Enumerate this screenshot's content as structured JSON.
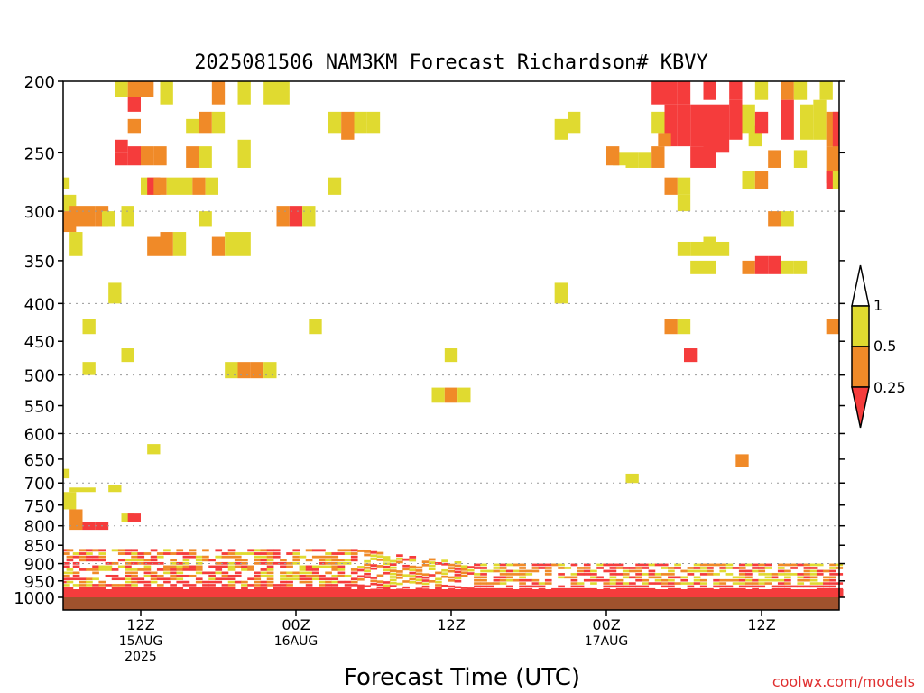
{
  "chart_data": {
    "type": "heatmap",
    "title": "2025081506 NAM3KM Forecast Richardson# KBVY",
    "xlabel": "Forecast Time (UTC)",
    "ylabel": "",
    "watermark": "coolwx.com/models",
    "y_axis": {
      "scale": "log-pressure",
      "unit": "hPa",
      "range": [
        1000,
        200
      ],
      "ticks": [
        200,
        250,
        300,
        350,
        400,
        450,
        500,
        550,
        600,
        650,
        700,
        750,
        800,
        850,
        900,
        950,
        1000
      ],
      "dotted_gridlines": [
        300,
        400,
        500,
        600,
        700,
        800,
        900
      ]
    },
    "x_axis": {
      "unit": "forecast hour",
      "range": [
        0,
        60
      ],
      "ticks": [
        {
          "hour": 6,
          "lines": [
            "12Z",
            "15AUG",
            "2025"
          ]
        },
        {
          "hour": 18,
          "lines": [
            "00Z",
            "16AUG"
          ]
        },
        {
          "hour": 30,
          "lines": [
            "12Z"
          ]
        },
        {
          "hour": 42,
          "lines": [
            "00Z",
            "17AUG"
          ]
        },
        {
          "hour": 54,
          "lines": [
            "12Z"
          ]
        }
      ]
    },
    "colorbar": {
      "labels": [
        "1",
        "0.5",
        "0.25"
      ],
      "bins": [
        {
          "from": 0.5,
          "to": 1,
          "color": "#e0da30"
        },
        {
          "from": 0.25,
          "to": 0.5,
          "color": "#f08a28"
        },
        {
          "from": 0,
          "to": 0.25,
          "color": "#f53c3c"
        }
      ],
      "over_color": "#ffffff",
      "under_color": "#f53c3c"
    },
    "surface_color": "#a0522d",
    "cells": [
      {
        "t": 4.5,
        "p1": 200,
        "p2": 210,
        "c": 1
      },
      {
        "t": 5.5,
        "p1": 200,
        "p2": 210,
        "c": 2
      },
      {
        "t": 6.5,
        "p1": 200,
        "p2": 210,
        "c": 2
      },
      {
        "t": 5.5,
        "p1": 210,
        "p2": 220,
        "c": 3
      },
      {
        "t": 8,
        "p1": 200,
        "p2": 215,
        "c": 1
      },
      {
        "t": 12,
        "p1": 200,
        "p2": 215,
        "c": 2
      },
      {
        "t": 14,
        "p1": 200,
        "p2": 215,
        "c": 1
      },
      {
        "t": 16,
        "p1": 200,
        "p2": 215,
        "c": 1
      },
      {
        "t": 17,
        "p1": 200,
        "p2": 215,
        "c": 1
      },
      {
        "t": 5.5,
        "p1": 225,
        "p2": 235,
        "c": 2
      },
      {
        "t": 10,
        "p1": 225,
        "p2": 235,
        "c": 1
      },
      {
        "t": 11,
        "p1": 220,
        "p2": 235,
        "c": 2
      },
      {
        "t": 12,
        "p1": 220,
        "p2": 235,
        "c": 1
      },
      {
        "t": 21,
        "p1": 220,
        "p2": 235,
        "c": 1
      },
      {
        "t": 22,
        "p1": 220,
        "p2": 240,
        "c": 2
      },
      {
        "t": 23,
        "p1": 220,
        "p2": 235,
        "c": 1
      },
      {
        "t": 24,
        "p1": 220,
        "p2": 235,
        "c": 1
      },
      {
        "t": 38.5,
        "p1": 225,
        "p2": 240,
        "c": 1
      },
      {
        "t": 39.5,
        "p1": 220,
        "p2": 235,
        "c": 1
      },
      {
        "t": 4.5,
        "p1": 240,
        "p2": 250,
        "c": 3
      },
      {
        "t": 4.5,
        "p1": 250,
        "p2": 260,
        "c": 3
      },
      {
        "t": 5.5,
        "p1": 245,
        "p2": 260,
        "c": 3
      },
      {
        "t": 6.5,
        "p1": 245,
        "p2": 260,
        "c": 2
      },
      {
        "t": 7.5,
        "p1": 245,
        "p2": 260,
        "c": 2
      },
      {
        "t": 10,
        "p1": 245,
        "p2": 262,
        "c": 2
      },
      {
        "t": 11,
        "p1": 245,
        "p2": 262,
        "c": 1
      },
      {
        "t": 14,
        "p1": 240,
        "p2": 262,
        "c": 1
      },
      {
        "t": 0,
        "p1": 270,
        "p2": 280,
        "c": 1
      },
      {
        "t": 6.5,
        "p1": 270,
        "p2": 285,
        "c": 1
      },
      {
        "t": 7,
        "p1": 270,
        "p2": 285,
        "c": 3
      },
      {
        "t": 7.5,
        "p1": 270,
        "p2": 285,
        "c": 2
      },
      {
        "t": 8.5,
        "p1": 270,
        "p2": 285,
        "c": 1
      },
      {
        "t": 9.5,
        "p1": 270,
        "p2": 285,
        "c": 1
      },
      {
        "t": 10.5,
        "p1": 270,
        "p2": 285,
        "c": 2
      },
      {
        "t": 11.5,
        "p1": 270,
        "p2": 285,
        "c": 1
      },
      {
        "t": 21,
        "p1": 270,
        "p2": 285,
        "c": 1
      },
      {
        "t": 0.5,
        "p1": 285,
        "p2": 300,
        "c": 1
      },
      {
        "t": 1,
        "p1": 295,
        "p2": 315,
        "c": 2
      },
      {
        "t": 2,
        "p1": 295,
        "p2": 315,
        "c": 2
      },
      {
        "t": 3,
        "p1": 295,
        "p2": 315,
        "c": 2
      },
      {
        "t": 0.5,
        "p1": 300,
        "p2": 320,
        "c": 2
      },
      {
        "t": 3.5,
        "p1": 300,
        "p2": 315,
        "c": 1
      },
      {
        "t": 5,
        "p1": 295,
        "p2": 315,
        "c": 1
      },
      {
        "t": 11,
        "p1": 300,
        "p2": 315,
        "c": 1
      },
      {
        "t": 17,
        "p1": 295,
        "p2": 315,
        "c": 2
      },
      {
        "t": 18,
        "p1": 295,
        "p2": 315,
        "c": 3
      },
      {
        "t": 19,
        "p1": 295,
        "p2": 315,
        "c": 1
      },
      {
        "t": 1,
        "p1": 320,
        "p2": 345,
        "c": 1
      },
      {
        "t": 7,
        "p1": 325,
        "p2": 345,
        "c": 2
      },
      {
        "t": 8,
        "p1": 320,
        "p2": 345,
        "c": 2
      },
      {
        "t": 9,
        "p1": 320,
        "p2": 345,
        "c": 1
      },
      {
        "t": 12,
        "p1": 325,
        "p2": 345,
        "c": 2
      },
      {
        "t": 13,
        "p1": 320,
        "p2": 345,
        "c": 1
      },
      {
        "t": 14,
        "p1": 320,
        "p2": 345,
        "c": 1
      },
      {
        "t": 4,
        "p1": 375,
        "p2": 400,
        "c": 1
      },
      {
        "t": 2,
        "p1": 420,
        "p2": 440,
        "c": 1
      },
      {
        "t": 5,
        "p1": 460,
        "p2": 480,
        "c": 1
      },
      {
        "t": 2,
        "p1": 480,
        "p2": 500,
        "c": 1
      },
      {
        "t": 7,
        "p1": 620,
        "p2": 640,
        "c": 1
      },
      {
        "t": 19.5,
        "p1": 420,
        "p2": 440,
        "c": 1
      },
      {
        "t": 13,
        "p1": 480,
        "p2": 505,
        "c": 1
      },
      {
        "t": 14,
        "p1": 480,
        "p2": 505,
        "c": 2
      },
      {
        "t": 15,
        "p1": 480,
        "p2": 505,
        "c": 2
      },
      {
        "t": 16,
        "p1": 480,
        "p2": 505,
        "c": 1
      },
      {
        "t": 30,
        "p1": 460,
        "p2": 480,
        "c": 1
      },
      {
        "t": 29,
        "p1": 520,
        "p2": 545,
        "c": 1
      },
      {
        "t": 30,
        "p1": 520,
        "p2": 545,
        "c": 2
      },
      {
        "t": 31,
        "p1": 520,
        "p2": 545,
        "c": 1
      },
      {
        "t": 38.5,
        "p1": 375,
        "p2": 400,
        "c": 1
      },
      {
        "t": 0,
        "p1": 670,
        "p2": 690,
        "c": 1
      },
      {
        "t": 4,
        "p1": 705,
        "p2": 720,
        "c": 1
      },
      {
        "t": 1,
        "p1": 710,
        "p2": 720,
        "c": 1
      },
      {
        "t": 2,
        "p1": 710,
        "p2": 720,
        "c": 1
      },
      {
        "t": 0.5,
        "p1": 720,
        "p2": 760,
        "c": 1
      },
      {
        "t": 44,
        "p1": 680,
        "p2": 700,
        "c": 1
      },
      {
        "t": 52.5,
        "p1": 640,
        "p2": 665,
        "c": 2
      },
      {
        "t": 46,
        "p1": 200,
        "p2": 215,
        "c": 3
      },
      {
        "t": 47,
        "p1": 200,
        "p2": 215,
        "c": 3
      },
      {
        "t": 48,
        "p1": 200,
        "p2": 215,
        "c": 3
      },
      {
        "t": 50,
        "p1": 200,
        "p2": 212,
        "c": 3
      },
      {
        "t": 52,
        "p1": 200,
        "p2": 212,
        "c": 3
      },
      {
        "t": 54,
        "p1": 200,
        "p2": 212,
        "c": 1
      },
      {
        "t": 56,
        "p1": 200,
        "p2": 212,
        "c": 2
      },
      {
        "t": 57,
        "p1": 200,
        "p2": 212,
        "c": 1
      },
      {
        "t": 59,
        "p1": 200,
        "p2": 212,
        "c": 1
      },
      {
        "t": 47,
        "p1": 215,
        "p2": 245,
        "c": 3
      },
      {
        "t": 48,
        "p1": 215,
        "p2": 245,
        "c": 3
      },
      {
        "t": 49,
        "p1": 215,
        "p2": 245,
        "c": 3
      },
      {
        "t": 50,
        "p1": 215,
        "p2": 250,
        "c": 3
      },
      {
        "t": 51,
        "p1": 215,
        "p2": 250,
        "c": 3
      },
      {
        "t": 52,
        "p1": 212,
        "p2": 240,
        "c": 3
      },
      {
        "t": 46,
        "p1": 220,
        "p2": 235,
        "c": 1
      },
      {
        "t": 46.5,
        "p1": 235,
        "p2": 245,
        "c": 2
      },
      {
        "t": 53,
        "p1": 215,
        "p2": 235,
        "c": 1
      },
      {
        "t": 53.5,
        "p1": 230,
        "p2": 245,
        "c": 1
      },
      {
        "t": 54,
        "p1": 220,
        "p2": 235,
        "c": 3
      },
      {
        "t": 56,
        "p1": 212,
        "p2": 240,
        "c": 3
      },
      {
        "t": 57.5,
        "p1": 215,
        "p2": 240,
        "c": 1
      },
      {
        "t": 58.5,
        "p1": 212,
        "p2": 240,
        "c": 1
      },
      {
        "t": 59.5,
        "p1": 220,
        "p2": 245,
        "c": 2
      },
      {
        "t": 60,
        "p1": 220,
        "p2": 260,
        "c": 3
      },
      {
        "t": 50,
        "p1": 245,
        "p2": 262,
        "c": 3
      },
      {
        "t": 49,
        "p1": 245,
        "p2": 262,
        "c": 3
      },
      {
        "t": 55,
        "p1": 248,
        "p2": 262,
        "c": 2
      },
      {
        "t": 57,
        "p1": 248,
        "p2": 262,
        "c": 1
      },
      {
        "t": 59.5,
        "p1": 245,
        "p2": 275,
        "c": 2
      },
      {
        "t": 43,
        "p1": 250,
        "p2": 260,
        "c": 1
      },
      {
        "t": 42.5,
        "p1": 245,
        "p2": 260,
        "c": 2
      },
      {
        "t": 44,
        "p1": 250,
        "p2": 262,
        "c": 1
      },
      {
        "t": 45,
        "p1": 250,
        "p2": 262,
        "c": 1
      },
      {
        "t": 46,
        "p1": 245,
        "p2": 262,
        "c": 2
      },
      {
        "t": 53,
        "p1": 265,
        "p2": 280,
        "c": 1
      },
      {
        "t": 54,
        "p1": 265,
        "p2": 280,
        "c": 2
      },
      {
        "t": 59.5,
        "p1": 265,
        "p2": 280,
        "c": 3
      },
      {
        "t": 60,
        "p1": 265,
        "p2": 280,
        "c": 1
      },
      {
        "t": 47,
        "p1": 270,
        "p2": 285,
        "c": 2
      },
      {
        "t": 48,
        "p1": 270,
        "p2": 285,
        "c": 1
      },
      {
        "t": 48,
        "p1": 285,
        "p2": 300,
        "c": 1
      },
      {
        "t": 55,
        "p1": 300,
        "p2": 315,
        "c": 2
      },
      {
        "t": 56,
        "p1": 300,
        "p2": 315,
        "c": 1
      },
      {
        "t": 48,
        "p1": 330,
        "p2": 345,
        "c": 1
      },
      {
        "t": 49,
        "p1": 330,
        "p2": 345,
        "c": 1
      },
      {
        "t": 50,
        "p1": 325,
        "p2": 345,
        "c": 1
      },
      {
        "t": 51,
        "p1": 330,
        "p2": 345,
        "c": 1
      },
      {
        "t": 49,
        "p1": 350,
        "p2": 365,
        "c": 1
      },
      {
        "t": 50,
        "p1": 350,
        "p2": 365,
        "c": 1
      },
      {
        "t": 53,
        "p1": 350,
        "p2": 365,
        "c": 2
      },
      {
        "t": 54,
        "p1": 345,
        "p2": 365,
        "c": 3
      },
      {
        "t": 55,
        "p1": 345,
        "p2": 365,
        "c": 3
      },
      {
        "t": 56,
        "p1": 350,
        "p2": 365,
        "c": 1
      },
      {
        "t": 57,
        "p1": 350,
        "p2": 365,
        "c": 1
      },
      {
        "t": 47,
        "p1": 420,
        "p2": 440,
        "c": 2
      },
      {
        "t": 48,
        "p1": 420,
        "p2": 440,
        "c": 1
      },
      {
        "t": 48.5,
        "p1": 460,
        "p2": 480,
        "c": 3
      },
      {
        "t": 59.5,
        "p1": 420,
        "p2": 440,
        "c": 2
      },
      {
        "t": 1,
        "p1": 760,
        "p2": 790,
        "c": 2
      },
      {
        "t": 2,
        "p1": 790,
        "p2": 810,
        "c": 3
      },
      {
        "t": 3,
        "p1": 790,
        "p2": 810,
        "c": 3
      },
      {
        "t": 1,
        "p1": 790,
        "p2": 810,
        "c": 2
      },
      {
        "t": 5,
        "p1": 770,
        "p2": 790,
        "c": 1
      },
      {
        "t": 5.5,
        "p1": 770,
        "p2": 790,
        "c": 3
      }
    ]
  }
}
